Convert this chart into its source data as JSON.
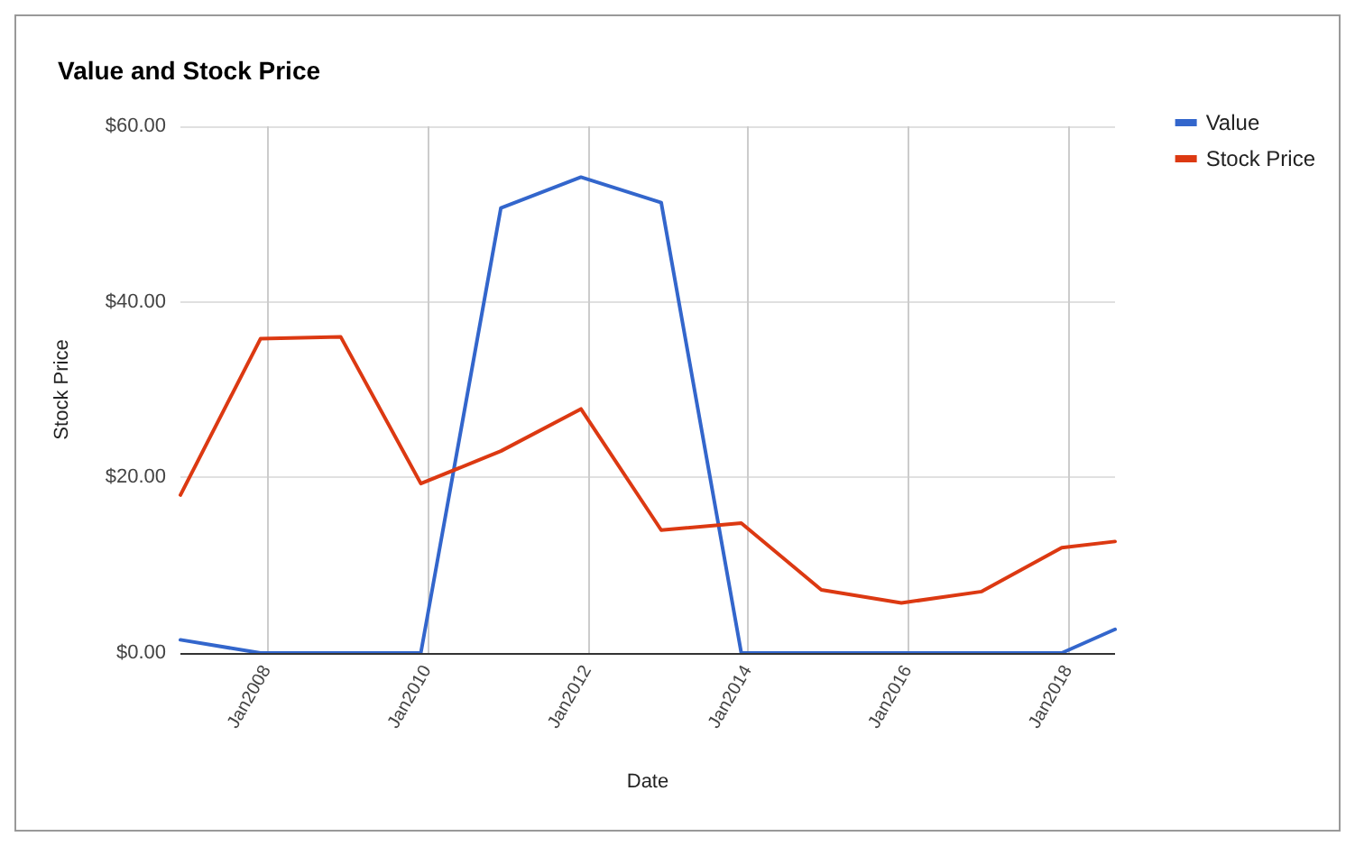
{
  "chart_data": {
    "type": "line",
    "title": "Value and Stock Price",
    "xlabel": "Date",
    "ylabel": "Stock Price",
    "x": [
      "2006-12",
      "2007-12",
      "2008-12",
      "2009-12",
      "2010-12",
      "2011-12",
      "2012-12",
      "2013-12",
      "2014-12",
      "2015-12",
      "2016-12",
      "2017-12",
      "2018-08"
    ],
    "series": [
      {
        "name": "Value",
        "color": "#3366cc",
        "values": [
          1.5,
          0,
          0,
          0,
          50.7,
          54.2,
          51.3,
          0,
          0,
          0,
          0,
          0,
          2.7
        ]
      },
      {
        "name": "Stock Price",
        "color": "#dc3912",
        "values": [
          18,
          35.8,
          36,
          19.3,
          23,
          27.8,
          14,
          14.8,
          7.2,
          5.7,
          7,
          12,
          12.7
        ]
      }
    ],
    "xlim": [
      "2006-12",
      "2018-08"
    ],
    "xticks": [
      {
        "value": "2008-01",
        "label": "Jan2008"
      },
      {
        "value": "2010-01",
        "label": "Jan2010"
      },
      {
        "value": "2012-01",
        "label": "Jan2012"
      },
      {
        "value": "2014-01",
        "label": "Jan2014"
      },
      {
        "value": "2016-01",
        "label": "Jan2016"
      },
      {
        "value": "2018-01",
        "label": "Jan2018"
      }
    ],
    "ylim": [
      0,
      60
    ],
    "yticks": [
      {
        "value": 0,
        "label": "$0.00"
      },
      {
        "value": 20,
        "label": "$20.00"
      },
      {
        "value": 40,
        "label": "$40.00"
      },
      {
        "value": 60,
        "label": "$60.00"
      }
    ],
    "grid": true,
    "legend": "top right",
    "marker": "none",
    "line_style": "solid"
  }
}
